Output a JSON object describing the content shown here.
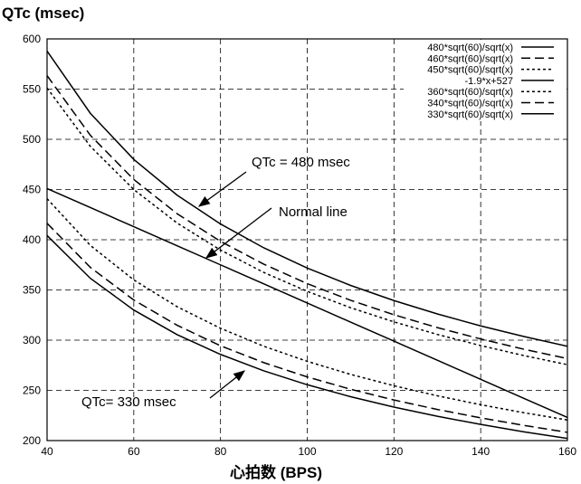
{
  "chart_data": {
    "type": "line",
    "title": "QTc (msec)",
    "xlabel": "心拍数 (BPS)",
    "ylabel": "QTc (msec)",
    "xlim": [
      40,
      160
    ],
    "ylim": [
      200,
      600
    ],
    "xticks": [
      40,
      60,
      80,
      100,
      120,
      140,
      160
    ],
    "yticks": [
      200,
      250,
      300,
      350,
      400,
      450,
      500,
      550,
      600
    ],
    "grid": true,
    "legend_position": "top-right",
    "x": [
      40,
      50,
      60,
      70,
      80,
      90,
      100,
      110,
      120,
      130,
      140,
      150,
      160
    ],
    "series": [
      {
        "name": "480*sqrt(60)/sqrt(x)",
        "dash": "solid",
        "values": [
          587.9,
          525.8,
          480,
          444.4,
          415.7,
          391.9,
          371.8,
          354.5,
          339.4,
          326.1,
          314.2,
          303.6,
          293.9
        ]
      },
      {
        "name": "460*sqrt(60)/sqrt(x)",
        "dash": "dashed",
        "values": [
          563.4,
          503.9,
          460,
          425.9,
          398.4,
          375.6,
          356.3,
          339.7,
          325.3,
          312.5,
          301.2,
          290.9,
          281.7
        ]
      },
      {
        "name": "450*sqrt(60)/sqrt(x)",
        "dash": "dotted",
        "values": [
          551.1,
          492.9,
          450,
          416.6,
          389.7,
          367.4,
          348.6,
          332.3,
          318.2,
          305.7,
          294.6,
          284.6,
          275.6
        ]
      },
      {
        "name": "-1.9*x+527",
        "dash": "solid",
        "values": [
          451,
          432,
          413,
          394,
          375,
          356,
          337,
          318,
          299,
          280,
          261,
          242,
          223
        ]
      },
      {
        "name": "360*sqrt(60)/sqrt(x)",
        "dash": "dotted",
        "values": [
          440.9,
          394.3,
          360,
          333.3,
          311.8,
          293.9,
          278.9,
          265.9,
          254.6,
          244.6,
          235.7,
          227.7,
          220.5
        ]
      },
      {
        "name": "340*sqrt(60)/sqrt(x)",
        "dash": "dashed",
        "values": [
          416.4,
          372.4,
          340,
          314.8,
          294.4,
          277.6,
          263.4,
          251.1,
          240.4,
          231.0,
          222.6,
          215.1,
          208.2
        ]
      },
      {
        "name": "330*sqrt(60)/sqrt(x)",
        "dash": "solid",
        "values": [
          404.2,
          361.5,
          330,
          305.5,
          285.8,
          269.4,
          255.6,
          243.7,
          233.3,
          224.2,
          216.1,
          208.7,
          202.1
        ]
      }
    ],
    "annotations": [
      {
        "text": "QTc = 480 msec",
        "target_x": 80,
        "target_y": 415
      },
      {
        "text": "Normal line",
        "target_x": 80,
        "target_y": 375
      },
      {
        "text": "QTc= 330 msec",
        "target_x": 90,
        "target_y": 269
      }
    ]
  }
}
